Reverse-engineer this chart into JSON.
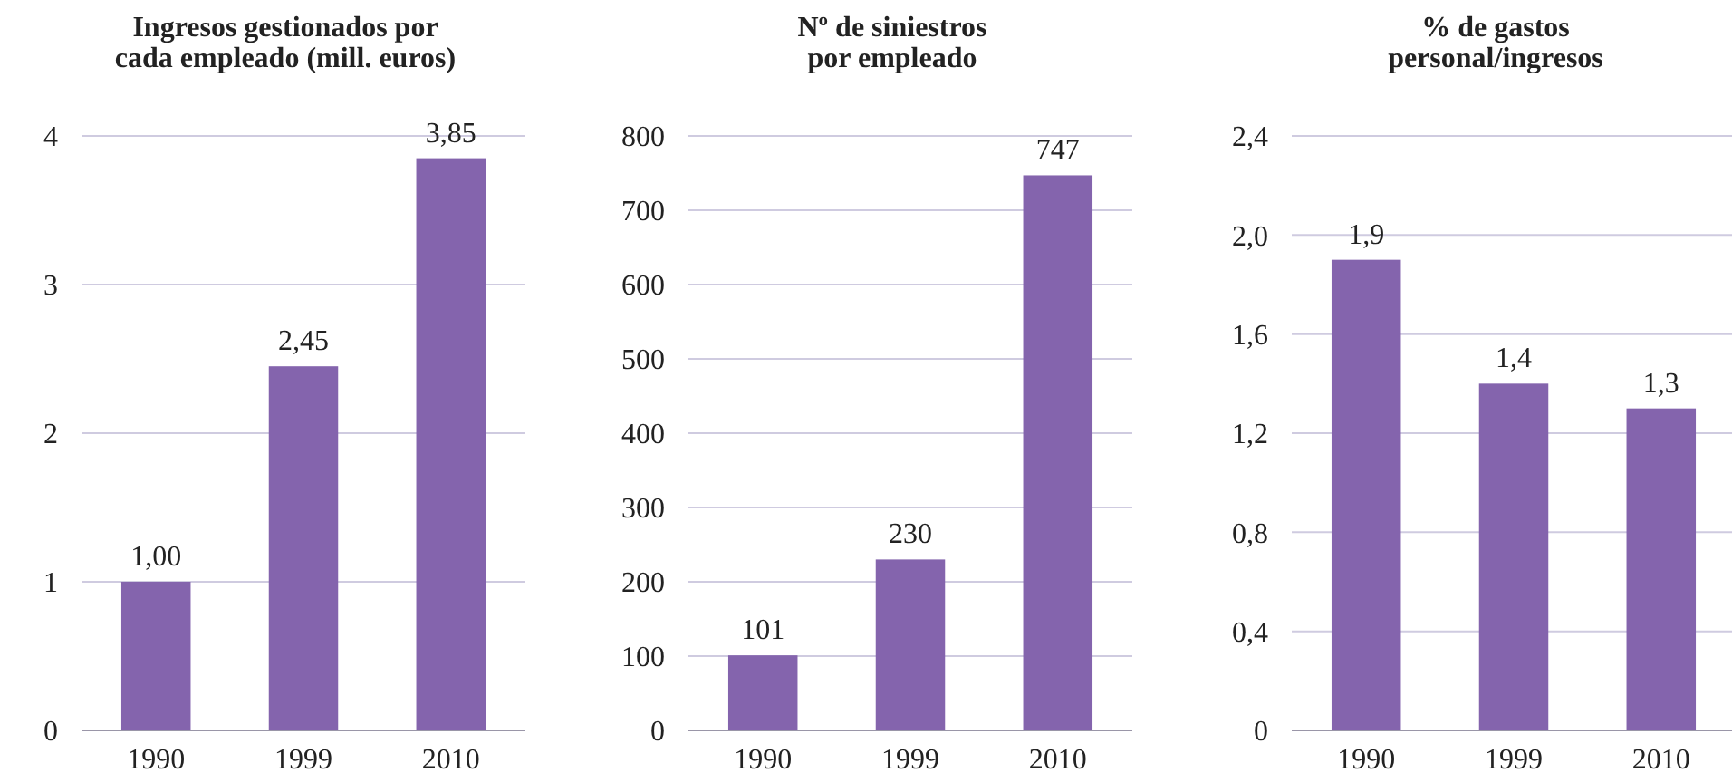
{
  "chart_data": [
    {
      "type": "bar",
      "title": "Ingresos gestionados por\ncada empleado (mill. euros)",
      "categories": [
        "1990",
        "1999",
        "2010"
      ],
      "values": [
        1.0,
        2.45,
        3.85
      ],
      "value_labels": [
        "1,00",
        "2,45",
        "3,85"
      ],
      "color": "#8464ad",
      "ylim": [
        0,
        4
      ],
      "yticks": [
        0,
        1,
        2,
        3,
        4
      ],
      "grid": "y"
    },
    {
      "type": "bar",
      "title": "Nº de siniestros\npor empleado",
      "categories": [
        "1990",
        "1999",
        "2010"
      ],
      "values": [
        101,
        230,
        747
      ],
      "value_labels": [
        "101",
        "230",
        "747"
      ],
      "color": "#8464ad",
      "ylim": [
        0,
        800
      ],
      "yticks": [
        0,
        100,
        200,
        300,
        400,
        500,
        600,
        700,
        800
      ],
      "grid": "y"
    },
    {
      "type": "bar",
      "title": "% de gastos\npersonal/ingresos",
      "categories": [
        "1990",
        "1999",
        "2010"
      ],
      "values": [
        1.9,
        1.4,
        1.3
      ],
      "value_labels": [
        "1,9",
        "1,4",
        "1,3"
      ],
      "color": "#8464ad",
      "ylim": [
        0,
        2.4
      ],
      "yticks": [
        0,
        {
          "value": 0.4,
          "label": "0,4"
        },
        {
          "value": 0.8,
          "label": "0,8"
        },
        {
          "value": 1.2,
          "label": "1,2"
        },
        {
          "value": 1.6,
          "label": "1,6"
        },
        {
          "value": 2.0,
          "label": "2,0"
        },
        {
          "value": 2.4,
          "label": "2,4"
        }
      ],
      "grid": "y"
    }
  ]
}
